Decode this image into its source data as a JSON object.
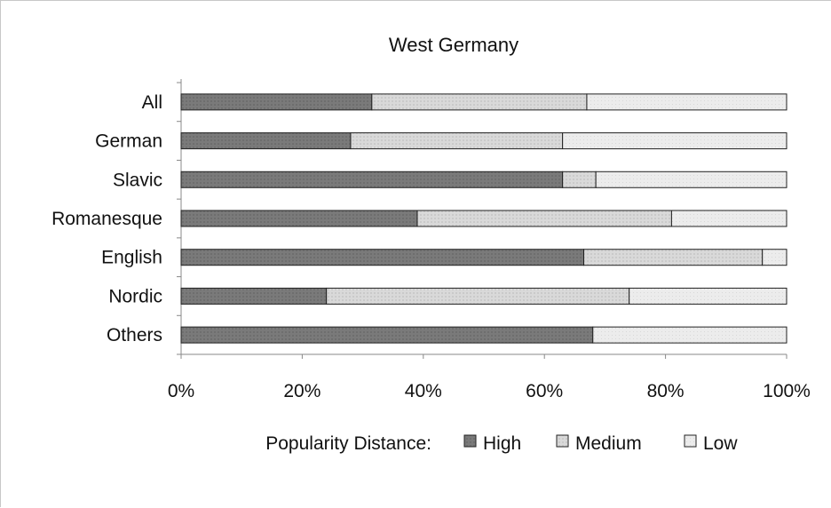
{
  "chart_data": {
    "type": "bar",
    "orientation": "horizontal",
    "stacked": "percent",
    "title": "West Germany",
    "categories": [
      "All",
      "German",
      "Slavic",
      "Romanesque",
      "English",
      "Nordic",
      "Others"
    ],
    "series": [
      {
        "name": "High",
        "values": [
          31.5,
          28,
          63,
          39,
          66.5,
          24,
          68
        ]
      },
      {
        "name": "Medium",
        "values": [
          35.5,
          35,
          5.5,
          42,
          29.5,
          50,
          0
        ]
      },
      {
        "name": "Low",
        "values": [
          33,
          37,
          31.5,
          19,
          4,
          26,
          32
        ]
      }
    ],
    "xlim": [
      0,
      100
    ],
    "x_ticks": [
      "0%",
      "20%",
      "40%",
      "60%",
      "80%",
      "100%"
    ],
    "legend_title": "Popularity Distance:",
    "legend_position": "bottom",
    "grid": false,
    "colors": {
      "High": "#7a7a7a",
      "Medium": "#d6d6d6",
      "Low": "#e6e6e6"
    }
  }
}
